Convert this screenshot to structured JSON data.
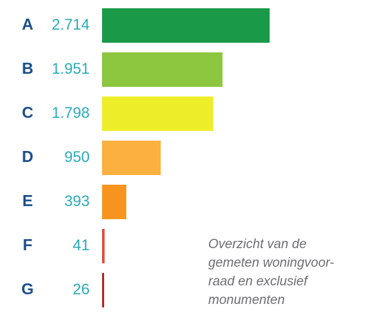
{
  "chart_data": {
    "type": "bar",
    "orientation": "horizontal",
    "categories": [
      "A",
      "B",
      "C",
      "D",
      "E",
      "F",
      "G"
    ],
    "values": [
      2714,
      1951,
      1798,
      950,
      393,
      41,
      26
    ],
    "value_labels": [
      "2.714",
      "1.951",
      "1.798",
      "950",
      "393",
      "41",
      "26"
    ],
    "colors": [
      "#1a9a48",
      "#8dc63f",
      "#eded2a",
      "#fbb040",
      "#f7941d",
      "#e04a3a",
      "#b5272d"
    ],
    "annotation": [
      "Overzicht van de",
      "gemeten woningvoor-",
      "raad en exclusief",
      "monumenten"
    ]
  }
}
